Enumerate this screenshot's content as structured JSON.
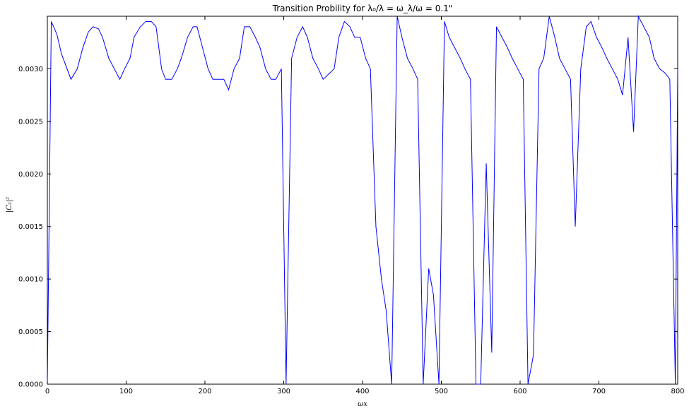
{
  "chart_data": {
    "type": "line",
    "title": "Transition Probility for λ₀/λ = ω_λ/ω = 0.1\"",
    "xlabel": "ωx",
    "ylabel": "|C₂|²",
    "xlim": [
      0,
      800
    ],
    "ylim": [
      0,
      0.0035
    ],
    "x_ticks": [
      0,
      100,
      200,
      300,
      400,
      500,
      600,
      700,
      800
    ],
    "x_tick_labels": [
      "0",
      "100",
      "200",
      "300",
      "400",
      "500",
      "600",
      "700",
      "800"
    ],
    "y_ticks": [
      0.0,
      0.0005,
      0.001,
      0.0015,
      0.002,
      0.0025,
      0.003
    ],
    "y_tick_labels": [
      "0.0000",
      "0.0005",
      "0.0010",
      "0.0015",
      "0.0020",
      "0.0025",
      "0.0030"
    ],
    "grid": false,
    "legend": "none",
    "series": [
      {
        "color": "#0000ff",
        "x": [
          0,
          5,
          12,
          18,
          25,
          30,
          38,
          45,
          52,
          58,
          65,
          70,
          78,
          85,
          92,
          98,
          105,
          110,
          118,
          125,
          132,
          138,
          145,
          150,
          158,
          165,
          170,
          178,
          185,
          190,
          197,
          204,
          210,
          217,
          224,
          230,
          237,
          244,
          250,
          257,
          264,
          270,
          277,
          284,
          290,
          297,
          303,
          310,
          317,
          324,
          330,
          337,
          344,
          350,
          357,
          364,
          370,
          377,
          384,
          390,
          397,
          404,
          410,
          417,
          424,
          430,
          437,
          444,
          450,
          457,
          464,
          470,
          477,
          484,
          490,
          497,
          504,
          510,
          517,
          524,
          530,
          537,
          544,
          550,
          557,
          564,
          570,
          577,
          584,
          590,
          597,
          604,
          610,
          617,
          624,
          630,
          637,
          644,
          650,
          657,
          664,
          670,
          677,
          684,
          690,
          697,
          704,
          710,
          717,
          724,
          730,
          737,
          744,
          750,
          757,
          764,
          770,
          777,
          784,
          790,
          797,
          800
        ],
        "y": [
          0.0,
          0.00345,
          0.00333,
          0.00314,
          0.003,
          0.0029,
          0.003,
          0.0032,
          0.00335,
          0.0034,
          0.00338,
          0.0033,
          0.0031,
          0.003,
          0.0029,
          0.003,
          0.0031,
          0.0033,
          0.0034,
          0.00345,
          0.00345,
          0.0034,
          0.003,
          0.0029,
          0.0029,
          0.003,
          0.0031,
          0.0033,
          0.0034,
          0.0034,
          0.0032,
          0.003,
          0.0029,
          0.0029,
          0.0029,
          0.0028,
          0.003,
          0.0031,
          0.0034,
          0.0034,
          0.0033,
          0.0032,
          0.003,
          0.0029,
          0.0029,
          0.003,
          0.0,
          0.0031,
          0.0033,
          0.0034,
          0.0033,
          0.0031,
          0.003,
          0.0029,
          0.00295,
          0.003,
          0.0033,
          0.00345,
          0.0034,
          0.0033,
          0.0033,
          0.0031,
          0.003,
          0.0015,
          0.001,
          0.0007,
          0.0,
          0.0035,
          0.0033,
          0.0031,
          0.003,
          0.0029,
          0.0,
          0.0011,
          0.00085,
          0.0,
          0.00345,
          0.0033,
          0.0032,
          0.0031,
          0.003,
          0.0029,
          0.0,
          0.0,
          0.0021,
          0.0003,
          0.0034,
          0.0033,
          0.0032,
          0.0031,
          0.003,
          0.0029,
          0.0,
          0.00028,
          0.003,
          0.0031,
          0.0035,
          0.0033,
          0.0031,
          0.003,
          0.0029,
          0.0015,
          0.003,
          0.0034,
          0.00345,
          0.0033,
          0.0032,
          0.0031,
          0.003,
          0.0029,
          0.00275,
          0.0033,
          0.0024,
          0.0035,
          0.0034,
          0.0033,
          0.0031,
          0.003,
          0.00296,
          0.0029,
          0.0,
          0.003
        ]
      }
    ]
  }
}
